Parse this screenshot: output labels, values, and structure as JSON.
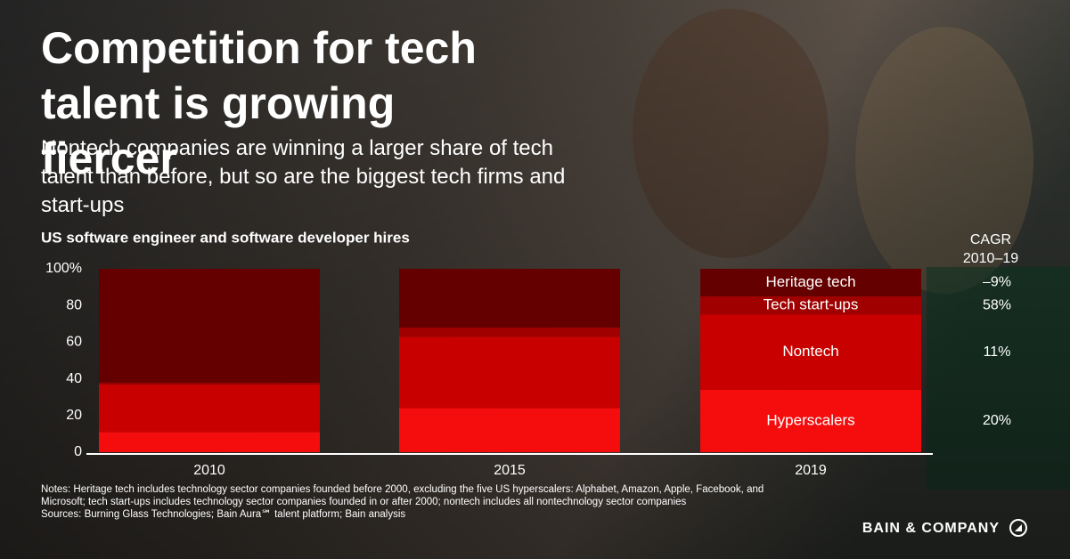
{
  "chart_data": {
    "type": "stacked_bar",
    "title": "Competition for tech talent is growing fiercer",
    "subtitle": "Nontech companies are winning a larger share of tech talent than before, but so are the biggest tech firms and start-ups",
    "y_axis_title": "US software engineer and software developer hires",
    "categories": [
      "2010",
      "2015",
      "2019"
    ],
    "series": [
      {
        "name": "Hyperscalers",
        "color": "#f50d0d",
        "values": [
          11,
          24,
          34
        ],
        "cagr": "20%"
      },
      {
        "name": "Nontech",
        "color": "#c80000",
        "values": [
          26,
          39,
          41
        ],
        "cagr": "11%"
      },
      {
        "name": "Tech start-ups",
        "color": "#a00000",
        "values": [
          1,
          5,
          10
        ],
        "cagr": "58%"
      },
      {
        "name": "Heritage tech",
        "color": "#650000",
        "values": [
          62,
          32,
          15
        ],
        "cagr": "–9%"
      }
    ],
    "cagr_header": [
      "CAGR",
      "2010–19"
    ],
    "ylim": [
      0,
      100
    ],
    "yticks": [
      0,
      20,
      40,
      60,
      80,
      {
        "value": 100,
        "label": "100%"
      }
    ],
    "notes": [
      "Notes: Heritage tech includes technology sector companies founded before 2000, excluding the five US hyperscalers: Alphabet, Amazon, Apple, Facebook, and",
      "Microsoft; tech start-ups includes technology sector companies founded in or after 2000; nontech includes all nontechnology sector companies",
      "Sources:  Burning Glass Technologies; Bain Aura℠ talent platform; Bain analysis"
    ],
    "brand": "BAIN & COMPANY"
  }
}
